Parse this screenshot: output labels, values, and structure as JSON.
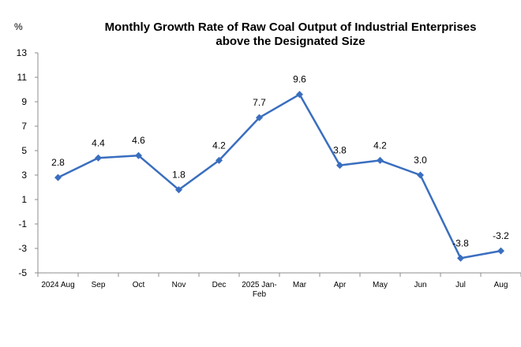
{
  "chart_data": {
    "type": "line",
    "title_line1": "Monthly Growth Rate of Raw Coal Output of Industrial Enterprises",
    "title_line2": "above the Designated Size",
    "unit_label": "%",
    "categories": [
      [
        "2024 Aug"
      ],
      [
        "Sep"
      ],
      [
        "Oct"
      ],
      [
        "Nov"
      ],
      [
        "Dec"
      ],
      [
        "2025 Jan-",
        "Feb"
      ],
      [
        "Mar"
      ],
      [
        "Apr"
      ],
      [
        "May"
      ],
      [
        "Jun"
      ],
      [
        "Jul"
      ],
      [
        "Aug"
      ]
    ],
    "values": [
      2.8,
      4.4,
      4.6,
      1.8,
      4.2,
      7.7,
      9.6,
      3.8,
      4.2,
      3.0,
      -3.8,
      -3.2
    ],
    "data_labels": [
      "2.8",
      "4.4",
      "4.6",
      "1.8",
      "4.2",
      "7.7",
      "9.6",
      "3.8",
      "4.2",
      "3.0",
      "-3.8",
      "-3.2"
    ],
    "yticks": [
      13,
      11,
      9,
      7,
      5,
      3,
      1,
      -1,
      -3,
      -5
    ],
    "ylim": [
      -5,
      13
    ],
    "line_color": "#3a6ebf",
    "marker": "diamond",
    "grid": false
  }
}
